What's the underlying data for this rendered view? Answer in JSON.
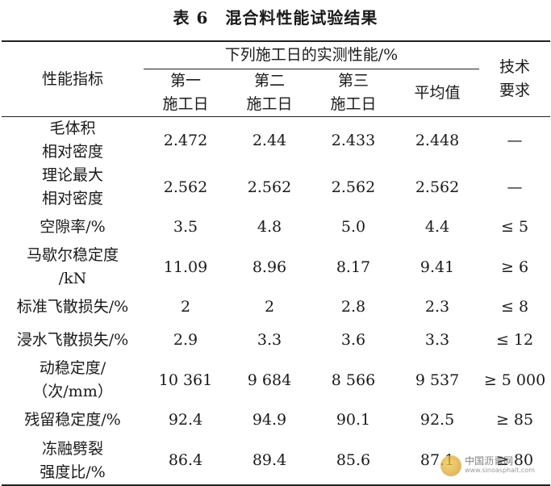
{
  "title": "表 6　混合料性能试验结果",
  "header": {
    "indicator": "性能指标",
    "group": "下列施工日的实测性能/%",
    "day1": "第一\n施工日",
    "day2": "第二\n施工日",
    "day3": "第三\n施工日",
    "avg": "平均值",
    "req": "技术\n要求"
  },
  "rows": [
    {
      "name": "毛体积\n相对密度",
      "d1": "2.472",
      "d2": "2.44",
      "d3": "2.433",
      "avg": "2.448",
      "req": "—"
    },
    {
      "name": "理论最大\n相对密度",
      "d1": "2.562",
      "d2": "2.562",
      "d3": "2.562",
      "avg": "2.562",
      "req": "—"
    },
    {
      "name": "空隙率/%",
      "d1": "3.5",
      "d2": "4.8",
      "d3": "5.0",
      "avg": "4.4",
      "req": "≤ 5"
    },
    {
      "name": "马歇尔稳定度\n/kN",
      "d1": "11.09",
      "d2": "8.96",
      "d3": "8.17",
      "avg": "9.41",
      "req": "≥ 6"
    },
    {
      "name": "标准飞散损失/%",
      "d1": "2",
      "d2": "2",
      "d3": "2.8",
      "avg": "2.3",
      "req": "≤ 8"
    },
    {
      "name": "浸水飞散损失/%",
      "d1": "2.9",
      "d2": "3.3",
      "d3": "3.6",
      "avg": "3.3",
      "req": "≤ 12"
    },
    {
      "name": "动稳定度/\n（次/mm）",
      "d1": "10 361",
      "d2": "9 684",
      "d3": "8 566",
      "avg": "9 537",
      "req": "≥ 5 000"
    },
    {
      "name": "残留稳定度/%",
      "d1": "92.4",
      "d2": "94.9",
      "d3": "90.1",
      "avg": "92.5",
      "req": "≥ 85"
    },
    {
      "name": "冻融劈裂\n强度比/%",
      "d1": "86.4",
      "d2": "89.4",
      "d3": "85.6",
      "avg": "87.1",
      "req": "≥ 80"
    }
  ],
  "watermark": {
    "cn": "中国沥青网",
    "en": "www.sinoasphalt.com"
  }
}
